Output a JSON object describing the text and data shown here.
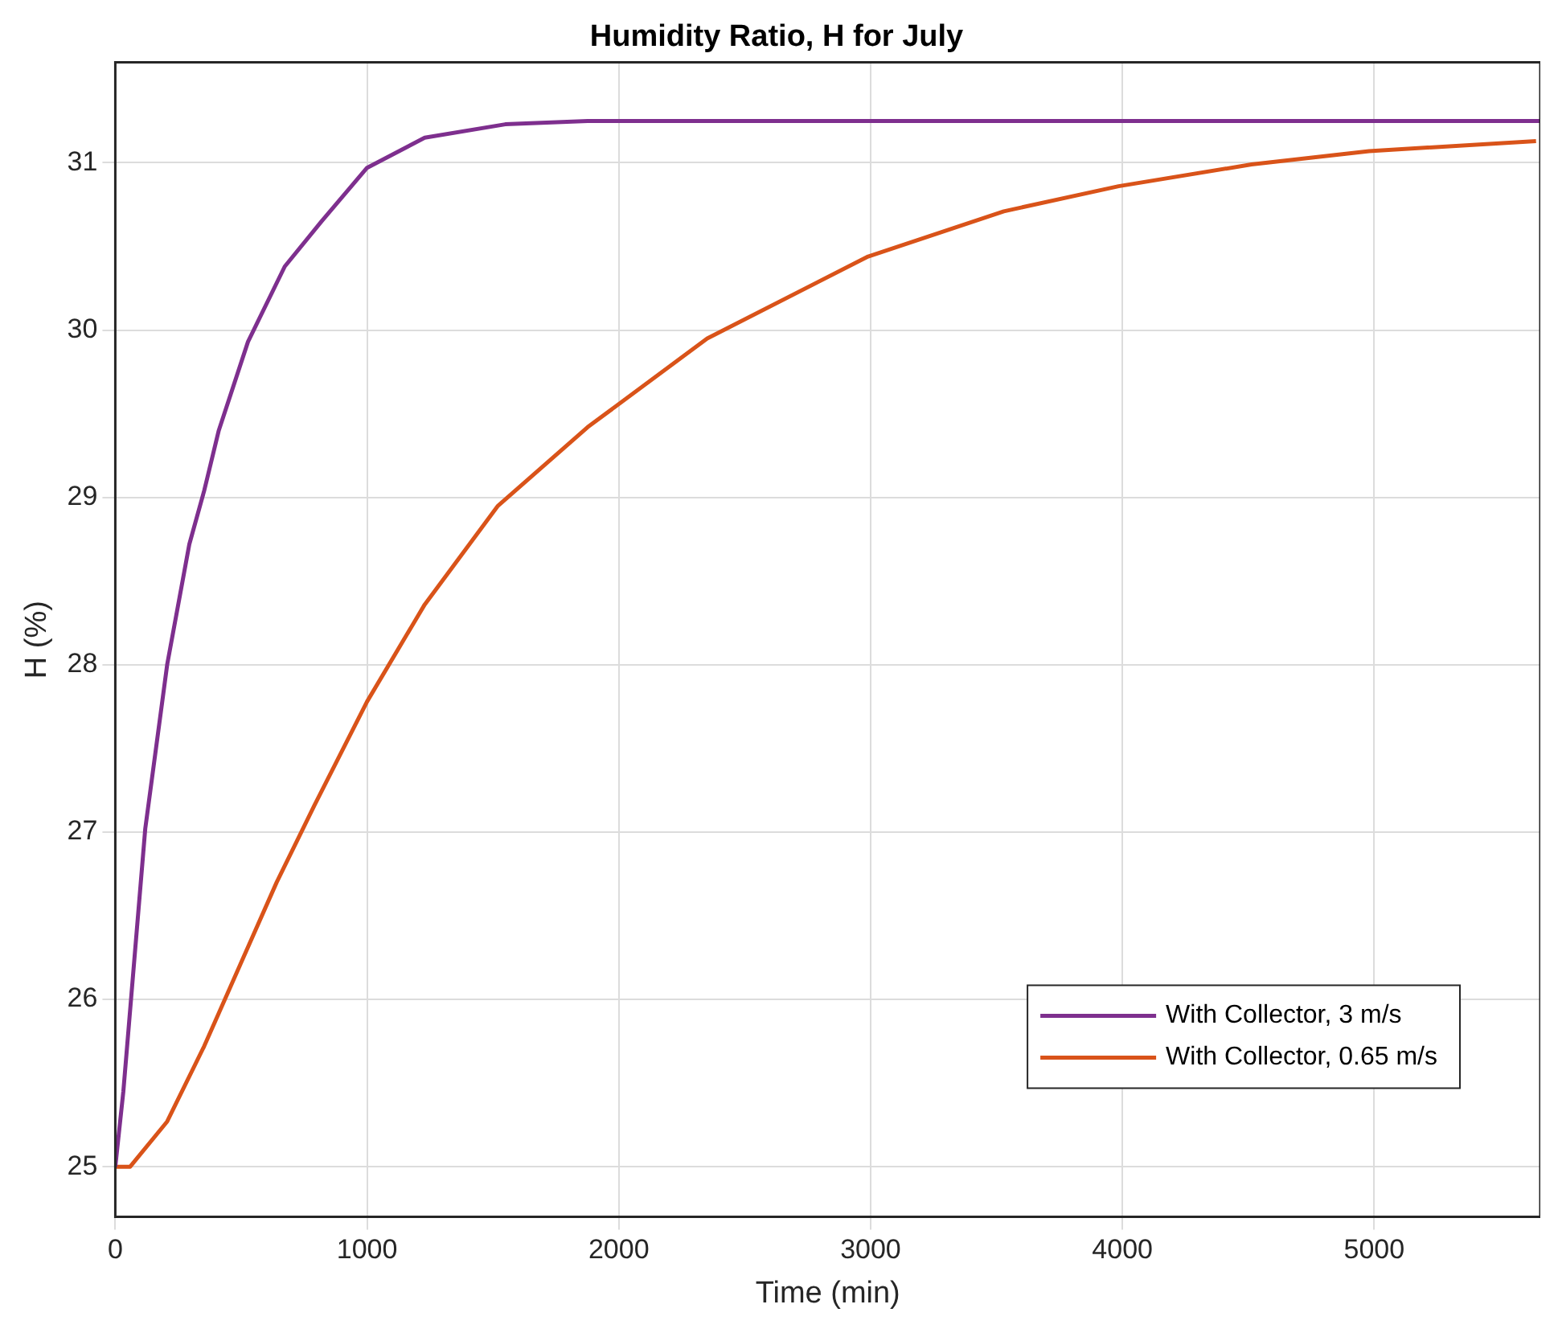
{
  "chart_data": {
    "type": "line",
    "title": "Humidity Ratio, H for July",
    "xlabel": "Time (min)",
    "ylabel": "H (%)",
    "xlim": [
      0,
      5660
    ],
    "xticks": [
      0,
      1000,
      2000,
      3000,
      4000,
      5000
    ],
    "ylim": [
      24.7,
      31.6
    ],
    "yticks": [
      25,
      26,
      27,
      28,
      29,
      30,
      31
    ],
    "grid": true,
    "legend": "bottom right",
    "marker": "none",
    "line_style": "solid",
    "series": [
      {
        "name": "With Collector, 3 m/s",
        "color": "#7e2f8e",
        "x": [
          0,
          32,
          119,
          206,
          294,
          353,
          411,
          527,
          673,
          819,
          1000,
          1229,
          1549,
          1876,
          2500,
          3500,
          4500,
          5660
        ],
        "values": [
          25,
          25.45,
          27.02,
          28.0,
          28.72,
          29.04,
          29.4,
          29.93,
          30.38,
          30.65,
          30.97,
          31.15,
          31.23,
          31.25,
          31.25,
          31.25,
          31.25,
          31.25
        ]
      },
      {
        "name": "With Collector, 0.65 m/s",
        "color": "#d95319",
        "x": [
          0,
          59,
          206,
          353,
          497,
          641,
          791,
          1000,
          1229,
          1520,
          1876,
          2351,
          2990,
          3529,
          3985,
          4513,
          4980,
          5643
        ],
        "values": [
          25,
          25.0,
          25.27,
          25.72,
          26.21,
          26.7,
          27.16,
          27.78,
          28.36,
          28.95,
          29.42,
          29.95,
          30.44,
          30.71,
          30.86,
          30.99,
          31.07,
          31.13
        ]
      }
    ]
  }
}
